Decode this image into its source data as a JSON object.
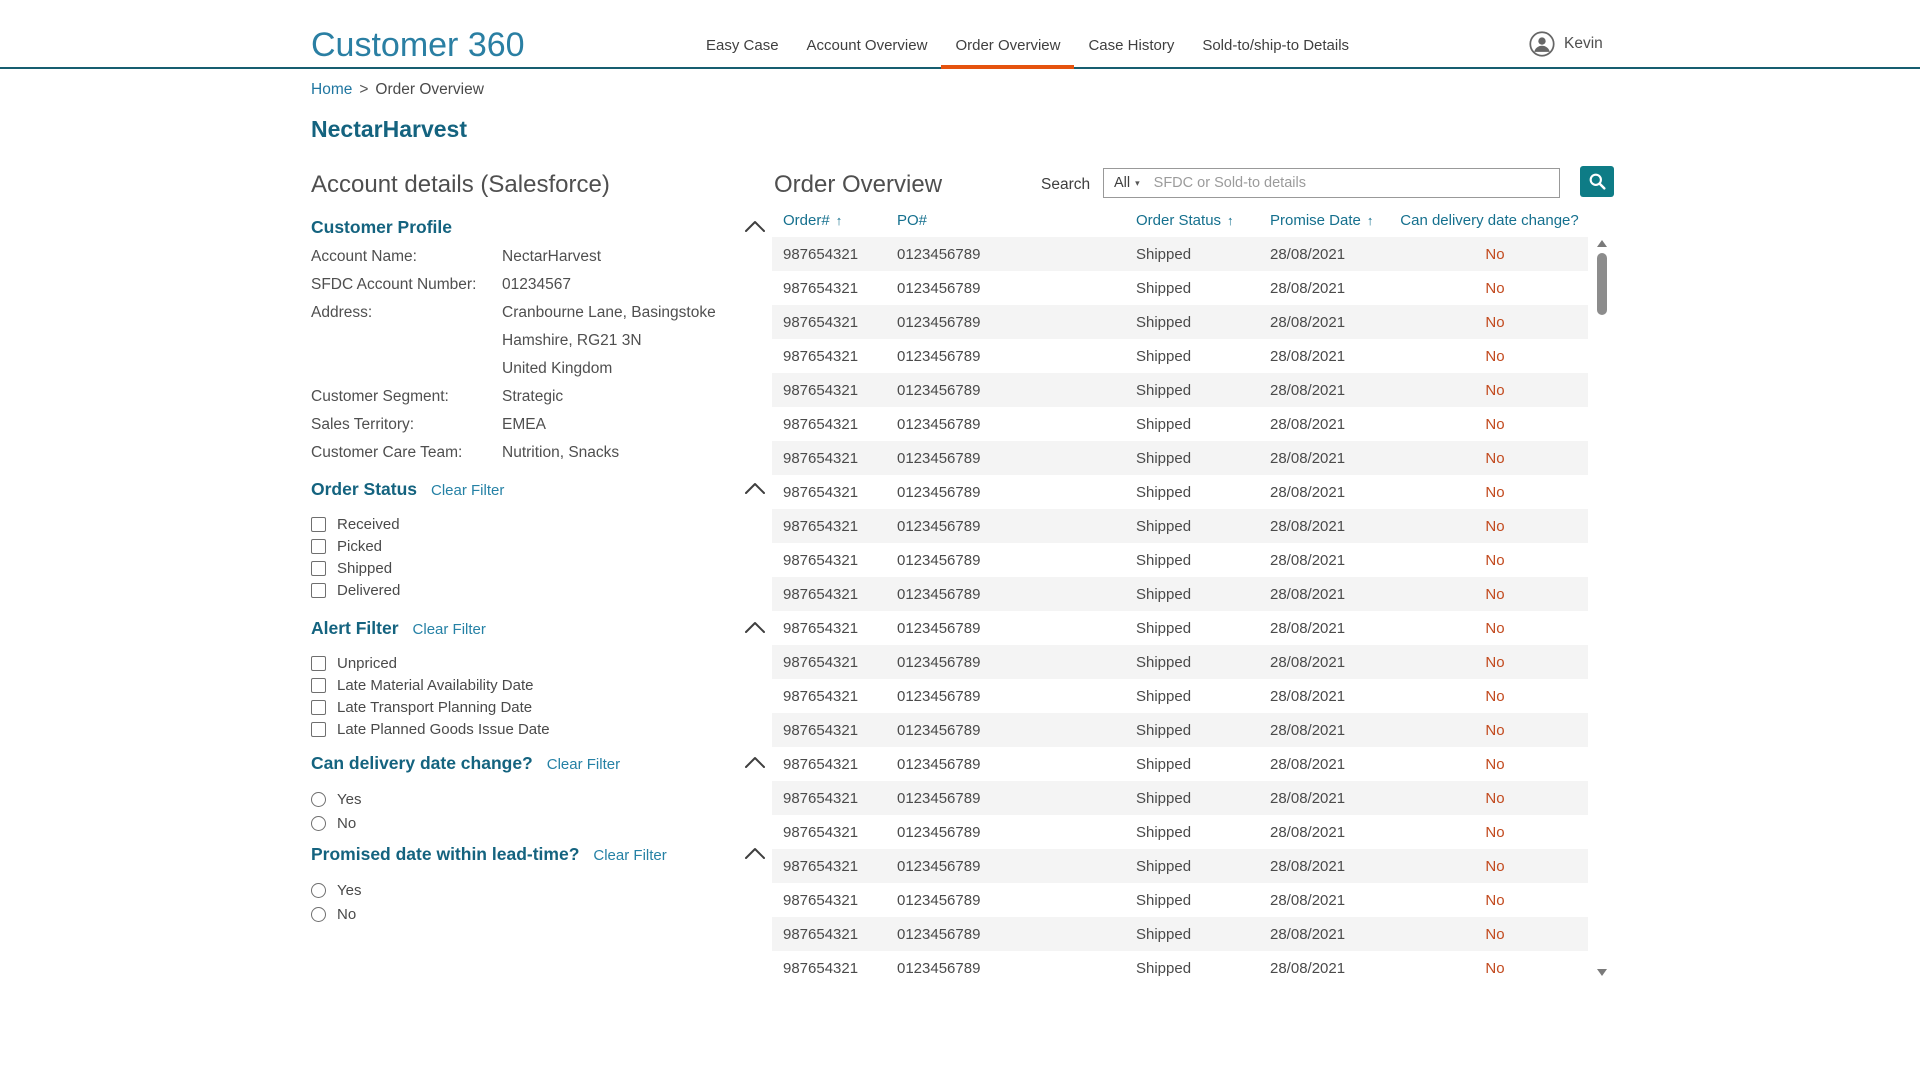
{
  "header": {
    "logo": "Customer 360",
    "nav_tabs": [
      {
        "label": "Easy Case",
        "active": false
      },
      {
        "label": "Account Overview",
        "active": false
      },
      {
        "label": "Order Overview",
        "active": true
      },
      {
        "label": "Case History",
        "active": false
      },
      {
        "label": "Sold-to/ship-to Details",
        "active": false
      }
    ],
    "user_name": "Kevin"
  },
  "breadcrumb": {
    "home": "Home",
    "separator": ">",
    "current": "Order Overview"
  },
  "page_title": "NectarHarvest",
  "account_panel": {
    "title": "Account details (Salesforce)",
    "profile": {
      "heading": "Customer Profile",
      "fields": [
        {
          "label": "Account Name:",
          "values": [
            "NectarHarvest"
          ]
        },
        {
          "label": "SFDC Account Number:",
          "values": [
            "01234567"
          ]
        },
        {
          "label": "Address:",
          "values": [
            "Cranbourne Lane, Basingstoke",
            "Hamshire, RG21 3N",
            "United Kingdom"
          ]
        },
        {
          "label": "Customer Segment:",
          "values": [
            "Strategic"
          ]
        },
        {
          "label": "Sales Territory:",
          "values": [
            "EMEA"
          ]
        },
        {
          "label": "Customer Care Team:",
          "values": [
            "Nutrition, Snacks"
          ]
        }
      ]
    },
    "filters": [
      {
        "heading": "Order Status",
        "clear_label": "Clear Filter",
        "type": "checkbox",
        "options": [
          "Received",
          "Picked",
          "Shipped",
          "Delivered"
        ]
      },
      {
        "heading": "Alert Filter",
        "clear_label": "Clear Filter",
        "type": "checkbox",
        "options": [
          "Unpriced",
          "Late Material Availability Date",
          "Late Transport Planning Date",
          "Late Planned Goods Issue Date"
        ]
      },
      {
        "heading": "Can delivery date change?",
        "clear_label": "Clear Filter",
        "type": "radio",
        "options": [
          "Yes",
          "No"
        ]
      },
      {
        "heading": "Promised date within lead-time?",
        "clear_label": "Clear Filter",
        "type": "radio",
        "options": [
          "Yes",
          "No"
        ]
      }
    ]
  },
  "order_panel": {
    "title": "Order Overview",
    "search": {
      "label": "Search",
      "scope": "All",
      "caret": "▾",
      "placeholder": "SFDC or Sold-to details"
    },
    "table": {
      "sort_icon": "↑",
      "columns": [
        {
          "label": "Order#",
          "sorted": true
        },
        {
          "label": "PO#",
          "sorted": false
        },
        {
          "label": "Order Status",
          "sorted": true
        },
        {
          "label": "Promise Date",
          "sorted": true
        },
        {
          "label": "Can delivery date change?",
          "sorted": false
        }
      ],
      "rows": [
        {
          "order_number": "987654321",
          "po_number": "0123456789",
          "order_status": "Shipped",
          "promise_date": "28/08/2021",
          "can_delivery_date_change": "No"
        },
        {
          "order_number": "987654321",
          "po_number": "0123456789",
          "order_status": "Shipped",
          "promise_date": "28/08/2021",
          "can_delivery_date_change": "No"
        },
        {
          "order_number": "987654321",
          "po_number": "0123456789",
          "order_status": "Shipped",
          "promise_date": "28/08/2021",
          "can_delivery_date_change": "No"
        },
        {
          "order_number": "987654321",
          "po_number": "0123456789",
          "order_status": "Shipped",
          "promise_date": "28/08/2021",
          "can_delivery_date_change": "No"
        },
        {
          "order_number": "987654321",
          "po_number": "0123456789",
          "order_status": "Shipped",
          "promise_date": "28/08/2021",
          "can_delivery_date_change": "No"
        },
        {
          "order_number": "987654321",
          "po_number": "0123456789",
          "order_status": "Shipped",
          "promise_date": "28/08/2021",
          "can_delivery_date_change": "No"
        },
        {
          "order_number": "987654321",
          "po_number": "0123456789",
          "order_status": "Shipped",
          "promise_date": "28/08/2021",
          "can_delivery_date_change": "No"
        },
        {
          "order_number": "987654321",
          "po_number": "0123456789",
          "order_status": "Shipped",
          "promise_date": "28/08/2021",
          "can_delivery_date_change": "No"
        },
        {
          "order_number": "987654321",
          "po_number": "0123456789",
          "order_status": "Shipped",
          "promise_date": "28/08/2021",
          "can_delivery_date_change": "No"
        },
        {
          "order_number": "987654321",
          "po_number": "0123456789",
          "order_status": "Shipped",
          "promise_date": "28/08/2021",
          "can_delivery_date_change": "No"
        },
        {
          "order_number": "987654321",
          "po_number": "0123456789",
          "order_status": "Shipped",
          "promise_date": "28/08/2021",
          "can_delivery_date_change": "No"
        },
        {
          "order_number": "987654321",
          "po_number": "0123456789",
          "order_status": "Shipped",
          "promise_date": "28/08/2021",
          "can_delivery_date_change": "No"
        },
        {
          "order_number": "987654321",
          "po_number": "0123456789",
          "order_status": "Shipped",
          "promise_date": "28/08/2021",
          "can_delivery_date_change": "No"
        },
        {
          "order_number": "987654321",
          "po_number": "0123456789",
          "order_status": "Shipped",
          "promise_date": "28/08/2021",
          "can_delivery_date_change": "No"
        },
        {
          "order_number": "987654321",
          "po_number": "0123456789",
          "order_status": "Shipped",
          "promise_date": "28/08/2021",
          "can_delivery_date_change": "No"
        },
        {
          "order_number": "987654321",
          "po_number": "0123456789",
          "order_status": "Shipped",
          "promise_date": "28/08/2021",
          "can_delivery_date_change": "No"
        },
        {
          "order_number": "987654321",
          "po_number": "0123456789",
          "order_status": "Shipped",
          "promise_date": "28/08/2021",
          "can_delivery_date_change": "No"
        },
        {
          "order_number": "987654321",
          "po_number": "0123456789",
          "order_status": "Shipped",
          "promise_date": "28/08/2021",
          "can_delivery_date_change": "No"
        },
        {
          "order_number": "987654321",
          "po_number": "0123456789",
          "order_status": "Shipped",
          "promise_date": "28/08/2021",
          "can_delivery_date_change": "No"
        },
        {
          "order_number": "987654321",
          "po_number": "0123456789",
          "order_status": "Shipped",
          "promise_date": "28/08/2021",
          "can_delivery_date_change": "No"
        },
        {
          "order_number": "987654321",
          "po_number": "0123456789",
          "order_status": "Shipped",
          "promise_date": "28/08/2021",
          "can_delivery_date_change": "No"
        },
        {
          "order_number": "987654321",
          "po_number": "0123456789",
          "order_status": "Shipped",
          "promise_date": "28/08/2021",
          "can_delivery_date_change": "No"
        }
      ]
    }
  },
  "colors": {
    "brand_teal": "#2a7fa3",
    "heading_teal": "#14637f",
    "link_teal": "#2581a5",
    "header_border_teal": "#175e70",
    "active_tab_orange": "#e5530e",
    "table_header_teal": "#15708e",
    "no_value_red": "#c2491d",
    "search_button_teal": "#0e7c86",
    "row_stripe_gray": "#f4f4f4"
  }
}
